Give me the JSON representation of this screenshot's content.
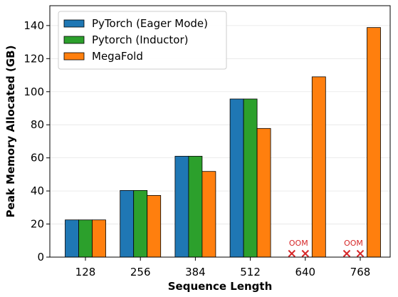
{
  "chart_data": {
    "type": "bar",
    "xlabel": "Sequence Length",
    "ylabel": "Peak Memory Allocated (GB)",
    "categories": [
      "128",
      "256",
      "384",
      "512",
      "640",
      "768"
    ],
    "ylim": [
      0,
      152
    ],
    "yticks": [
      0,
      20,
      40,
      60,
      80,
      100,
      120,
      140
    ],
    "grid": true,
    "legend_position": "top-left",
    "series": [
      {
        "name": "PyTorch (Eager Mode)",
        "color": "#1f77b4",
        "values": [
          22.5,
          40.3,
          61.0,
          95.6,
          null,
          null
        ]
      },
      {
        "name": "Pytorch (Inductor)",
        "color": "#2ca02c",
        "values": [
          22.5,
          40.3,
          61.0,
          95.6,
          null,
          null
        ]
      },
      {
        "name": "MegaFold",
        "color": "#ff7f0e",
        "values": [
          22.5,
          37.3,
          51.8,
          77.8,
          109.0,
          138.8
        ]
      }
    ],
    "annotations": [
      {
        "category": "640",
        "text": "OOM",
        "marker": "x",
        "series": [
          "PyTorch (Eager Mode)",
          "Pytorch (Inductor)"
        ],
        "color": "#d62728"
      },
      {
        "category": "768",
        "text": "OOM",
        "marker": "x",
        "series": [
          "PyTorch (Eager Mode)",
          "Pytorch (Inductor)"
        ],
        "color": "#d62728"
      }
    ]
  }
}
